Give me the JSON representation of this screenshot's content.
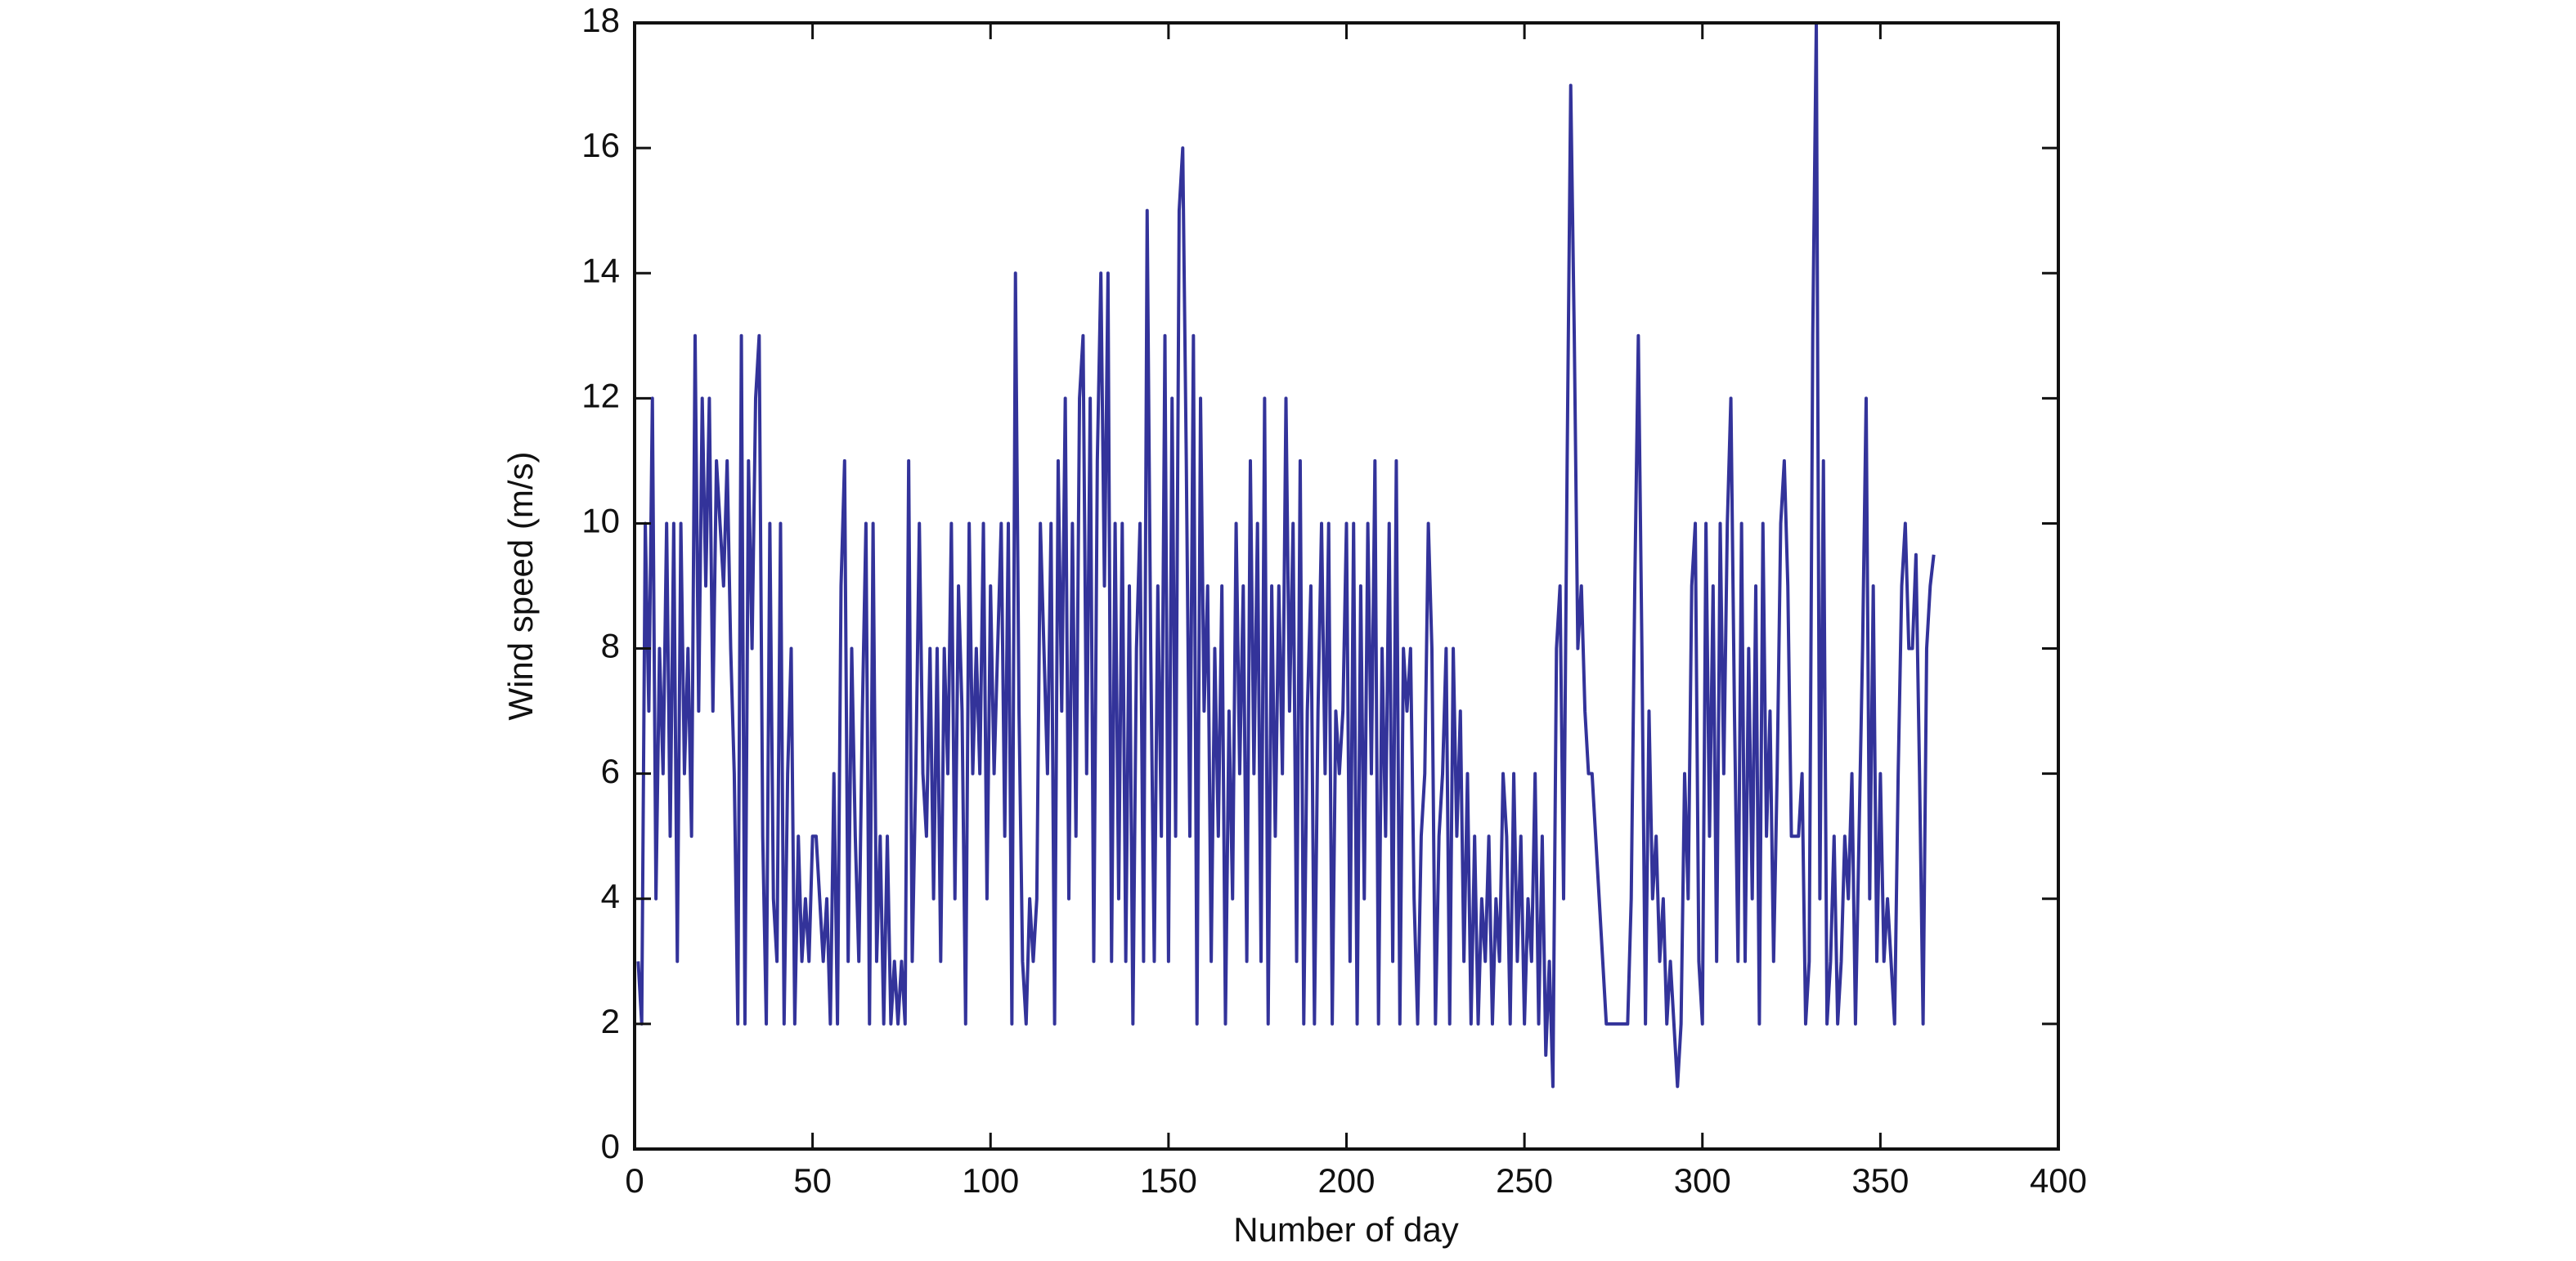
{
  "chart_data": {
    "type": "line",
    "xlabel": "Number of day",
    "ylabel": "Wind speed (m/s)",
    "color": "#33339a",
    "xlim": [
      0,
      400
    ],
    "xticks": [
      0,
      50,
      100,
      150,
      200,
      250,
      300,
      350,
      400
    ],
    "ylim": [
      0,
      18
    ],
    "yticks": [
      0,
      2,
      4,
      6,
      8,
      10,
      12,
      14,
      16,
      18
    ],
    "grid": false,
    "x": [
      1,
      2,
      3,
      4,
      5,
      6,
      7,
      8,
      9,
      10,
      11,
      12,
      13,
      14,
      15,
      16,
      17,
      18,
      19,
      20,
      21,
      22,
      23,
      24,
      25,
      26,
      27,
      28,
      29,
      30,
      31,
      32,
      33,
      34,
      35,
      36,
      37,
      38,
      39,
      40,
      41,
      42,
      43,
      44,
      45,
      46,
      47,
      48,
      49,
      50,
      51,
      52,
      53,
      54,
      55,
      56,
      57,
      58,
      59,
      60,
      61,
      62,
      63,
      64,
      65,
      66,
      67,
      68,
      69,
      70,
      71,
      72,
      73,
      74,
      75,
      76,
      77,
      78,
      79,
      80,
      81,
      82,
      83,
      84,
      85,
      86,
      87,
      88,
      89,
      90,
      91,
      92,
      93,
      94,
      95,
      96,
      97,
      98,
      99,
      100,
      101,
      102,
      103,
      104,
      105,
      106,
      107,
      108,
      109,
      110,
      111,
      112,
      113,
      114,
      115,
      116,
      117,
      118,
      119,
      120,
      121,
      122,
      123,
      124,
      125,
      126,
      127,
      128,
      129,
      130,
      131,
      132,
      133,
      134,
      135,
      136,
      137,
      138,
      139,
      140,
      141,
      142,
      143,
      144,
      145,
      146,
      147,
      148,
      149,
      150,
      151,
      152,
      153,
      154,
      155,
      156,
      157,
      158,
      159,
      160,
      161,
      162,
      163,
      164,
      165,
      166,
      167,
      168,
      169,
      170,
      171,
      172,
      173,
      174,
      175,
      176,
      177,
      178,
      179,
      180,
      181,
      182,
      183,
      184,
      185,
      186,
      187,
      188,
      189,
      190,
      191,
      192,
      193,
      194,
      195,
      196,
      197,
      198,
      199,
      200,
      201,
      202,
      203,
      204,
      205,
      206,
      207,
      208,
      209,
      210,
      211,
      212,
      213,
      214,
      215,
      216,
      217,
      218,
      219,
      220,
      221,
      222,
      223,
      224,
      225,
      226,
      227,
      228,
      229,
      230,
      231,
      232,
      233,
      234,
      235,
      236,
      237,
      238,
      239,
      240,
      241,
      242,
      243,
      244,
      245,
      246,
      247,
      248,
      249,
      250,
      251,
      252,
      253,
      254,
      255,
      256,
      257,
      258,
      259,
      260,
      261,
      262,
      263,
      264,
      265,
      266,
      267,
      268,
      269,
      270,
      271,
      272,
      273,
      274,
      275,
      276,
      277,
      278,
      279,
      280,
      281,
      282,
      283,
      284,
      285,
      286,
      287,
      288,
      289,
      290,
      291,
      292,
      293,
      294,
      295,
      296,
      297,
      298,
      299,
      300,
      301,
      302,
      303,
      304,
      305,
      306,
      307,
      308,
      309,
      310,
      311,
      312,
      313,
      314,
      315,
      316,
      317,
      318,
      319,
      320,
      321,
      322,
      323,
      324,
      325,
      326,
      327,
      328,
      329,
      330,
      331,
      332,
      333,
      334,
      335,
      336,
      337,
      338,
      339,
      340,
      341,
      342,
      343,
      344,
      345,
      346,
      347,
      348,
      349,
      350,
      351,
      352,
      353,
      354,
      355,
      356,
      357,
      358,
      359,
      360,
      361,
      362,
      363,
      364,
      365
    ],
    "values": [
      3,
      2,
      10,
      7,
      12,
      4,
      8,
      6,
      10,
      5,
      10,
      3,
      10,
      6,
      8,
      5,
      13,
      7,
      12,
      9,
      12,
      7,
      11,
      10,
      9,
      11,
      8,
      6,
      2,
      13,
      2,
      11,
      8,
      12,
      13,
      5,
      2,
      10,
      4,
      3,
      10,
      2,
      6,
      8,
      2,
      5,
      3,
      4,
      3,
      5,
      5,
      4,
      3,
      4,
      2,
      6,
      2,
      9,
      11,
      3,
      8,
      5,
      3,
      7,
      10,
      2,
      10,
      3,
      5,
      2,
      5,
      2,
      3,
      2,
      3,
      2,
      11,
      3,
      6,
      10,
      6,
      5,
      8,
      4,
      8,
      3,
      8,
      6,
      10,
      4,
      9,
      7,
      2,
      10,
      6,
      8,
      6,
      10,
      4,
      9,
      6,
      8,
      10,
      5,
      10,
      2,
      14,
      7,
      3,
      2,
      4,
      3,
      4,
      10,
      8,
      6,
      10,
      2,
      11,
      7,
      12,
      4,
      10,
      5,
      12,
      13,
      6,
      12,
      3,
      11,
      14,
      9,
      14,
      3,
      10,
      4,
      10,
      3,
      9,
      2,
      8,
      10,
      3,
      15,
      8,
      3,
      9,
      5,
      13,
      3,
      12,
      5,
      15,
      16,
      11,
      5,
      13,
      2,
      12,
      7,
      9,
      3,
      8,
      5,
      9,
      2,
      7,
      4,
      10,
      6,
      9,
      3,
      11,
      6,
      10,
      3,
      12,
      2,
      9,
      5,
      9,
      6,
      12,
      7,
      10,
      3,
      11,
      2,
      7,
      9,
      2,
      7,
      10,
      6,
      10,
      2,
      7,
      6,
      7,
      10,
      3,
      10,
      2,
      9,
      4,
      10,
      6,
      11,
      2,
      8,
      5,
      10,
      3,
      11,
      2,
      8,
      7,
      8,
      4,
      2,
      5,
      6,
      10,
      8,
      2,
      5,
      6,
      8,
      2,
      8,
      5,
      7,
      3,
      6,
      2,
      5,
      2,
      4,
      3,
      5,
      2,
      4,
      3,
      6,
      5,
      2,
      6,
      3,
      5,
      2,
      4,
      3,
      6,
      2,
      5,
      1.5,
      3,
      1,
      8,
      9,
      4,
      11,
      17,
      13,
      8,
      9,
      7,
      6,
      6,
      5,
      4,
      3,
      2,
      2,
      2,
      2,
      2,
      2,
      2,
      4,
      9,
      13,
      8,
      2,
      7,
      4,
      5,
      3,
      4,
      2,
      3,
      2,
      1,
      2,
      6,
      4,
      9,
      10,
      3,
      2,
      10,
      5,
      9,
      3,
      10,
      6,
      10,
      12,
      7,
      3,
      10,
      3,
      8,
      4,
      9,
      2,
      10,
      5,
      7,
      3,
      6,
      10,
      11,
      9,
      5,
      5,
      5,
      6,
      2,
      3,
      13,
      18,
      4,
      11,
      2,
      3,
      5,
      2,
      3,
      5,
      4,
      6,
      2,
      5,
      8,
      12,
      4,
      9,
      3,
      6,
      3,
      4,
      3,
      2,
      6,
      9,
      10,
      8,
      8,
      9.5,
      6,
      2,
      8,
      9,
      9.5
    ]
  }
}
